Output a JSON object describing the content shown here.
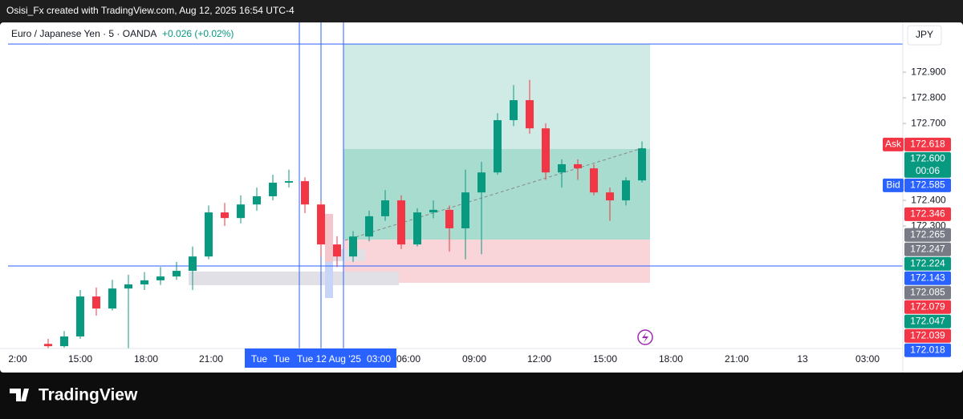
{
  "header": {
    "title": "Osisi_Fx created with TradingView.com, Aug 12, 2025 16:54 UTC-4"
  },
  "chart_data": {
    "type": "candlestick",
    "symbol": "Euro / Japanese Yen · 5 · OANDA",
    "change": "+0.026 (+0.02%)",
    "currency": "JPY",
    "x_labels": [
      "2:00",
      "15:00",
      "18:00",
      "21:00",
      "06:00",
      "09:00",
      "12:00",
      "15:00",
      "18:00",
      "21:00",
      "13",
      "03:00"
    ],
    "crosshair_labels": [
      "Tue",
      "Tue",
      "Tue 12 Aug '25",
      "03:00"
    ],
    "up_color": "#089981",
    "down_color": "#f23645",
    "open": [
      171.84,
      171.831,
      171.869,
      172.025,
      171.978,
      172.056,
      172.072,
      172.088,
      172.103,
      172.125,
      172.181,
      172.353,
      172.331,
      172.384,
      172.416,
      172.469,
      172.475,
      172.384,
      172.228,
      172.181,
      172.259,
      172.338,
      172.4,
      172.228,
      172.353,
      172.363,
      172.291,
      172.431,
      172.509,
      172.713,
      172.791,
      172.681,
      172.509,
      172.541,
      172.525,
      172.431,
      172.4,
      172.478
    ],
    "high": [
      171.86,
      171.89,
      172.05,
      172.06,
      172.09,
      172.11,
      172.12,
      172.14,
      172.16,
      172.22,
      172.38,
      172.39,
      172.42,
      172.45,
      172.5,
      172.52,
      172.49,
      172.4,
      172.26,
      172.28,
      172.36,
      172.44,
      172.42,
      172.37,
      172.4,
      172.38,
      172.52,
      172.55,
      172.74,
      172.85,
      172.87,
      172.7,
      172.56,
      172.56,
      172.54,
      172.45,
      172.49,
      172.63
    ],
    "low": [
      171.822,
      171.825,
      171.86,
      171.95,
      171.97,
      171.822,
      172.05,
      172.07,
      172.09,
      172.05,
      172.17,
      172.3,
      172.31,
      172.36,
      172.4,
      172.45,
      172.35,
      172.18,
      172.14,
      172.16,
      172.24,
      172.32,
      172.21,
      172.22,
      172.33,
      172.2,
      172.17,
      172.19,
      172.5,
      172.69,
      172.66,
      172.48,
      172.45,
      172.48,
      172.42,
      172.32,
      172.38,
      172.47
    ],
    "close": [
      171.831,
      171.869,
      172.025,
      171.978,
      172.056,
      172.072,
      172.088,
      172.103,
      172.125,
      172.181,
      172.353,
      172.331,
      172.384,
      172.416,
      172.469,
      172.475,
      172.384,
      172.228,
      172.181,
      172.259,
      172.338,
      172.4,
      172.228,
      172.353,
      172.363,
      172.291,
      172.431,
      172.509,
      172.713,
      172.791,
      172.681,
      172.509,
      172.541,
      172.525,
      172.431,
      172.4,
      172.478,
      172.603
    ],
    "ylim": [
      171.822,
      173.088
    ],
    "yticks": [
      {
        "value": 172.9,
        "label": "172.900"
      },
      {
        "value": 172.8,
        "label": "172.800"
      },
      {
        "value": 172.7,
        "label": "172.700"
      },
      {
        "value": 172.4,
        "label": "172.400"
      },
      {
        "value": 172.3,
        "label": "172.300"
      }
    ],
    "price_labels": [
      {
        "value": 172.618,
        "label": "172.618",
        "color": "#f23645",
        "tag": "Ask"
      },
      {
        "value": 172.6,
        "label": "172.600",
        "color": "#089981",
        "timer": "00:06"
      },
      {
        "value": 172.585,
        "label": "172.585",
        "color": "#2962ff",
        "tag": "Bid"
      },
      {
        "value": 172.346,
        "label": "172.346",
        "color": "#f23645"
      },
      {
        "value": 172.265,
        "label": "172.265",
        "color": "#787b86"
      },
      {
        "value": 172.247,
        "label": "172.247",
        "color": "#787b86"
      },
      {
        "value": 172.224,
        "label": "172.224",
        "color": "#089981"
      },
      {
        "value": 172.143,
        "label": "172.143",
        "color": "#2962ff"
      },
      {
        "value": 172.085,
        "label": "172.085",
        "color": "#787b86"
      },
      {
        "value": 172.079,
        "label": "172.079",
        "color": "#f23645"
      },
      {
        "value": 172.047,
        "label": "172.047",
        "color": "#089981"
      },
      {
        "value": 172.039,
        "label": "172.039",
        "color": "#f23645"
      },
      {
        "value": 172.018,
        "label": "172.018",
        "color": "#2962ff"
      }
    ]
  },
  "footer": {
    "brand": "TradingView"
  }
}
